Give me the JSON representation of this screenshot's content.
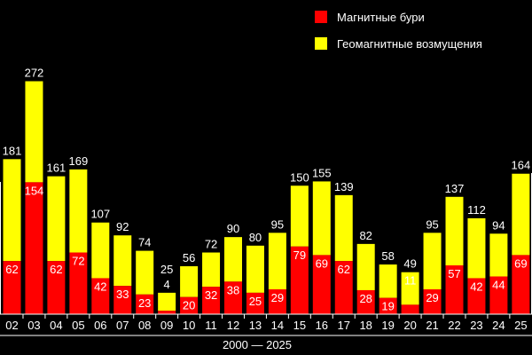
{
  "chart_data": {
    "type": "bar",
    "stacked": true,
    "categories": [
      "02",
      "03",
      "04",
      "05",
      "06",
      "07",
      "08",
      "09",
      "10",
      "11",
      "12",
      "13",
      "14",
      "15",
      "16",
      "17",
      "18",
      "19",
      "20",
      "21",
      "22",
      "23",
      "24",
      "25"
    ],
    "series": [
      {
        "name": "Магнитные бури",
        "color": "#ff0000",
        "values": [
          62,
          154,
          62,
          72,
          42,
          33,
          23,
          4,
          20,
          32,
          38,
          25,
          29,
          79,
          69,
          62,
          28,
          19,
          11,
          29,
          57,
          42,
          44,
          69
        ]
      },
      {
        "name": "Геомагнитные возмущения",
        "color": "#ffff00",
        "values": [
          119,
          118,
          99,
          97,
          65,
          59,
          51,
          21,
          36,
          40,
          52,
          55,
          66,
          71,
          86,
          77,
          54,
          39,
          38,
          66,
          80,
          70,
          50,
          95
        ]
      }
    ],
    "totals": [
      181,
      272,
      161,
      169,
      107,
      92,
      74,
      25,
      56,
      72,
      90,
      80,
      95,
      150,
      155,
      139,
      82,
      58,
      49,
      95,
      137,
      112,
      94,
      164
    ],
    "xlabel": "2000 — 2025",
    "ylim": [
      0,
      300
    ],
    "grid": false,
    "legend_position": "top-right"
  }
}
